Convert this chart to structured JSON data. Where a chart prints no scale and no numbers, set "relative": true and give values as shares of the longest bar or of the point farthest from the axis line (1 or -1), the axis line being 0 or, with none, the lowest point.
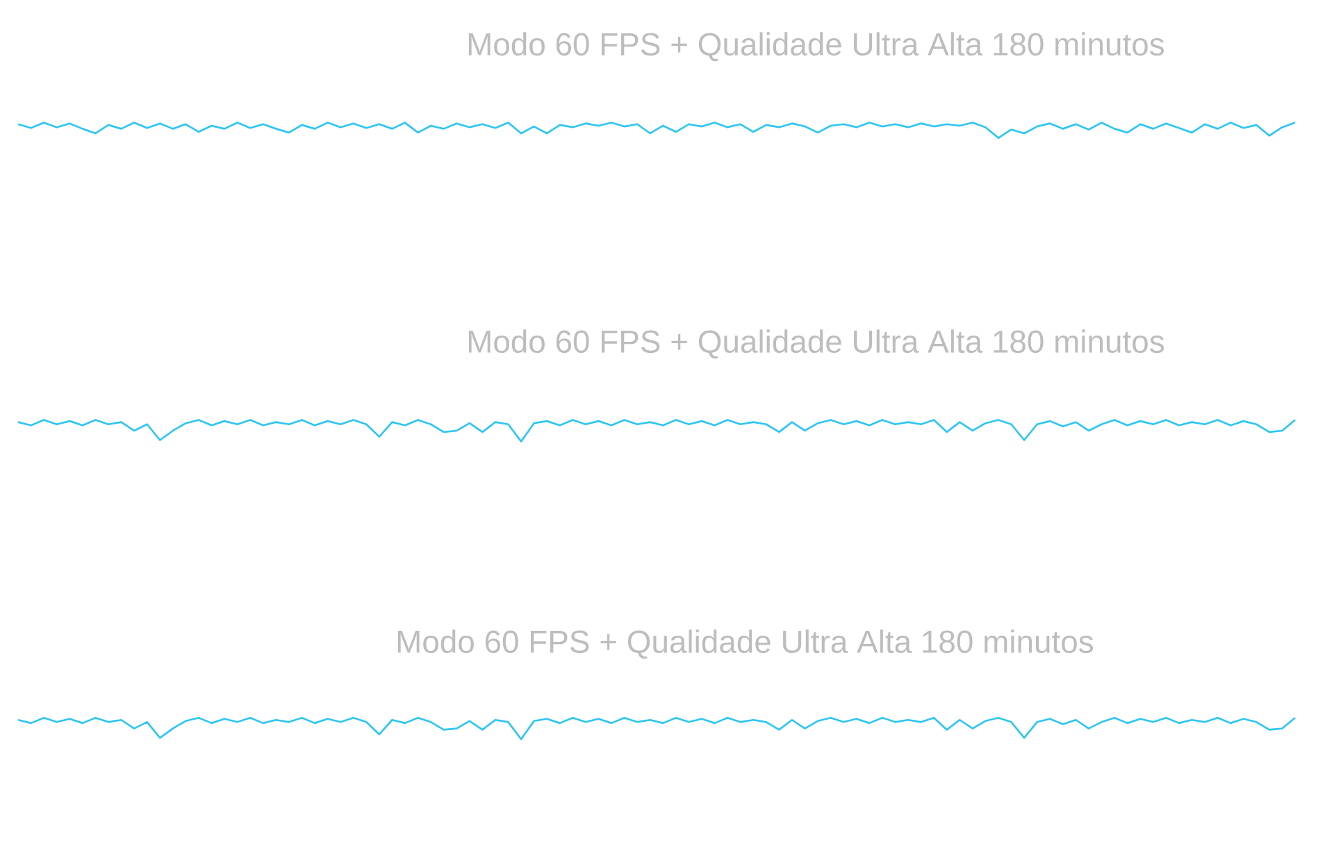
{
  "chart_data": [
    {
      "type": "line",
      "title": "Modo 60 FPS + Qualidade Ultra Alta 180 minutos",
      "relative": true,
      "categories": [
        null,
        null,
        null,
        null,
        null,
        null,
        null,
        null,
        null,
        null,
        null,
        null,
        null,
        null,
        null,
        null,
        null,
        null,
        null,
        null,
        null,
        null,
        null,
        null,
        null,
        null,
        null,
        null,
        null,
        null,
        null,
        null,
        null,
        null,
        null,
        null,
        null,
        null,
        null,
        null,
        null,
        null,
        null,
        null,
        null,
        null,
        null,
        null,
        null,
        null,
        null,
        null,
        null,
        null,
        null,
        null,
        null,
        null,
        null,
        null,
        null,
        null,
        null,
        null,
        null,
        null,
        null,
        null,
        null,
        null,
        null,
        null,
        null,
        null,
        null,
        null,
        null,
        null,
        null,
        null,
        null,
        null,
        null,
        null,
        null,
        null,
        null,
        null,
        null,
        null,
        null,
        null,
        null,
        null,
        null,
        null,
        null,
        null,
        null,
        null
      ],
      "series": [
        {
          "color": "#2ec5f5",
          "values": [
            0.9,
            0.65,
            1,
            0.7,
            0.95,
            0.6,
            0.3,
            0.85,
            0.6,
            1,
            0.65,
            0.95,
            0.6,
            0.9,
            0.4,
            0.8,
            0.6,
            1,
            0.65,
            0.9,
            0.6,
            0.35,
            0.85,
            0.6,
            1,
            0.7,
            0.95,
            0.65,
            0.9,
            0.6,
            1,
            0.35,
            0.8,
            0.6,
            0.95,
            0.7,
            0.9,
            0.65,
            1,
            0.3,
            0.75,
            0.3,
            0.85,
            0.7,
            0.95,
            0.8,
            1,
            0.75,
            0.9,
            0.3,
            0.8,
            0.4,
            0.9,
            0.75,
            1,
            0.7,
            0.9,
            0.4,
            0.85,
            0.7,
            0.95,
            0.75,
            0.35,
            0.8,
            0.9,
            0.7,
            1,
            0.75,
            0.9,
            0.7,
            0.95,
            0.75,
            0.9,
            0.8,
            1,
            0.7,
            0,
            0.55,
            0.3,
            0.75,
            0.95,
            0.6,
            0.9,
            0.55,
            1,
            0.6,
            0.35,
            0.9,
            0.6,
            0.95,
            0.65,
            0.35,
            0.9,
            0.6,
            1,
            0.65,
            0.85,
            0.15,
            0.7,
            1
          ]
        }
      ]
    },
    {
      "type": "line",
      "title": "Modo 60 FPS + Qualidade Ultra Alta 180 minutos",
      "relative": true,
      "categories": [
        null,
        null,
        null,
        null,
        null,
        null,
        null,
        null,
        null,
        null,
        null,
        null,
        null,
        null,
        null,
        null,
        null,
        null,
        null,
        null,
        null,
        null,
        null,
        null,
        null,
        null,
        null,
        null,
        null,
        null,
        null,
        null,
        null,
        null,
        null,
        null,
        null,
        null,
        null,
        null,
        null,
        null,
        null,
        null,
        null,
        null,
        null,
        null,
        null,
        null,
        null,
        null,
        null,
        null,
        null,
        null,
        null,
        null,
        null,
        null,
        null,
        null,
        null,
        null,
        null,
        null,
        null,
        null,
        null,
        null,
        null,
        null,
        null,
        null,
        null,
        null,
        null,
        null,
        null,
        null,
        null,
        null,
        null,
        null,
        null,
        null,
        null,
        null,
        null,
        null,
        null,
        null,
        null,
        null,
        null,
        null,
        null,
        null,
        null,
        null
      ],
      "series": [
        {
          "color": "#2ec5f5",
          "values": [
            0.9,
            0.75,
            1,
            0.8,
            0.95,
            0.75,
            1,
            0.8,
            0.9,
            0.5,
            0.8,
            0.06,
            0.5,
            0.85,
            1,
            0.75,
            0.95,
            0.8,
            1,
            0.75,
            0.9,
            0.8,
            1,
            0.75,
            0.95,
            0.8,
            1,
            0.8,
            0.22,
            0.9,
            0.75,
            1,
            0.8,
            0.44,
            0.5,
            0.85,
            0.44,
            0.9,
            0.8,
            0,
            0.85,
            0.95,
            0.75,
            1,
            0.8,
            0.95,
            0.75,
            1,
            0.8,
            0.9,
            0.75,
            1,
            0.8,
            0.95,
            0.75,
            1,
            0.8,
            0.9,
            0.8,
            0.44,
            0.9,
            0.5,
            0.85,
            1,
            0.8,
            0.95,
            0.75,
            1,
            0.8,
            0.9,
            0.8,
            1,
            0.44,
            0.9,
            0.5,
            0.85,
            1,
            0.8,
            0.06,
            0.8,
            0.95,
            0.7,
            0.9,
            0.5,
            0.8,
            1,
            0.75,
            0.95,
            0.8,
            1,
            0.75,
            0.9,
            0.8,
            1,
            0.75,
            0.95,
            0.8,
            0.44,
            0.5,
            1
          ]
        }
      ]
    },
    {
      "type": "line",
      "title": "Modo 60 FPS + Qualidade Ultra Alta 180 minutos",
      "relative": true,
      "categories": [
        null,
        null,
        null,
        null,
        null,
        null,
        null,
        null,
        null,
        null,
        null,
        null,
        null,
        null,
        null,
        null,
        null,
        null,
        null,
        null,
        null,
        null,
        null,
        null,
        null,
        null,
        null,
        null,
        null,
        null,
        null,
        null,
        null,
        null,
        null,
        null,
        null,
        null,
        null,
        null,
        null,
        null,
        null,
        null,
        null,
        null,
        null,
        null,
        null,
        null,
        null,
        null,
        null,
        null,
        null,
        null,
        null,
        null,
        null,
        null,
        null,
        null,
        null,
        null,
        null,
        null,
        null,
        null,
        null,
        null,
        null,
        null,
        null,
        null,
        null,
        null,
        null,
        null,
        null,
        null,
        null,
        null,
        null,
        null,
        null,
        null,
        null,
        null,
        null,
        null,
        null,
        null,
        null,
        null,
        null,
        null,
        null,
        null,
        null,
        null
      ],
      "series": [
        {
          "color": "#2ec5f5",
          "values": [
            0.9,
            0.75,
            1,
            0.8,
            0.95,
            0.75,
            1,
            0.8,
            0.9,
            0.5,
            0.8,
            0.06,
            0.5,
            0.85,
            1,
            0.75,
            0.95,
            0.8,
            1,
            0.75,
            0.9,
            0.8,
            1,
            0.75,
            0.95,
            0.8,
            1,
            0.8,
            0.22,
            0.9,
            0.75,
            1,
            0.8,
            0.44,
            0.5,
            0.85,
            0.44,
            0.9,
            0.8,
            0,
            0.85,
            0.95,
            0.75,
            1,
            0.8,
            0.95,
            0.75,
            1,
            0.8,
            0.9,
            0.75,
            1,
            0.8,
            0.95,
            0.75,
            1,
            0.8,
            0.9,
            0.8,
            0.44,
            0.9,
            0.5,
            0.85,
            1,
            0.8,
            0.95,
            0.75,
            1,
            0.8,
            0.9,
            0.8,
            1,
            0.44,
            0.9,
            0.5,
            0.85,
            1,
            0.8,
            0.06,
            0.8,
            0.95,
            0.7,
            0.9,
            0.5,
            0.8,
            1,
            0.75,
            0.95,
            0.8,
            1,
            0.75,
            0.9,
            0.8,
            1,
            0.75,
            0.95,
            0.8,
            0.44,
            0.5,
            1
          ]
        }
      ]
    }
  ]
}
